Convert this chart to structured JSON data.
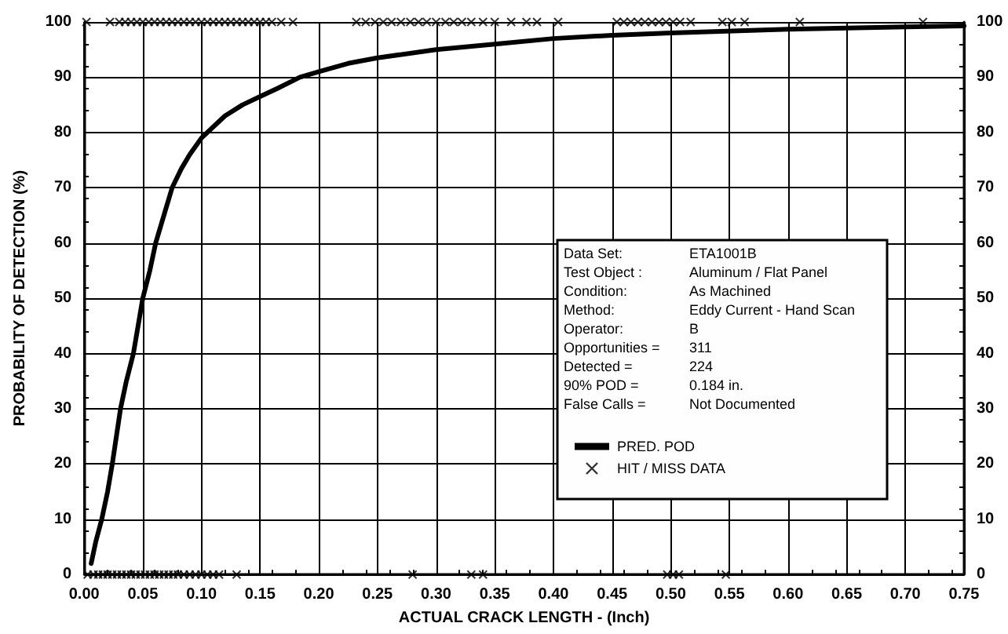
{
  "chart_data": {
    "type": "line",
    "xlabel": "ACTUAL CRACK LENGTH - (Inch)",
    "ylabel": "PROBABILITY OF DETECTION (%)",
    "xlim": [
      0,
      0.75
    ],
    "xticks": [
      {
        "value": 0,
        "label": "0.00"
      },
      {
        "value": 0.05,
        "label": "0.05"
      },
      {
        "value": 0.1,
        "label": "0.10"
      },
      {
        "value": 0.15,
        "label": "0.15"
      },
      {
        "value": 0.2,
        "label": "0.20"
      },
      {
        "value": 0.25,
        "label": "0.25"
      },
      {
        "value": 0.3,
        "label": "0.30"
      },
      {
        "value": 0.35,
        "label": "0.35"
      },
      {
        "value": 0.4,
        "label": "0.40"
      },
      {
        "value": 0.45,
        "label": "0.45"
      },
      {
        "value": 0.5,
        "label": "0.50"
      },
      {
        "value": 0.55,
        "label": "0.55"
      },
      {
        "value": 0.6,
        "label": "0.60"
      },
      {
        "value": 0.65,
        "label": "0.65"
      },
      {
        "value": 0.7,
        "label": "0.70"
      },
      {
        "value": 0.75,
        "label": "0.75"
      }
    ],
    "ylim": [
      0,
      100
    ],
    "yticks": [
      0,
      10,
      20,
      30,
      40,
      50,
      60,
      70,
      80,
      90,
      100
    ],
    "y2lim": [
      0,
      100
    ],
    "y2ticks": [
      0,
      10,
      20,
      30,
      40,
      50,
      60,
      70,
      80,
      90,
      100
    ],
    "grid": true,
    "legend": "bottom",
    "annotations": [
      "Data Set:",
      "ETA1001B",
      "Test Object :",
      "Aluminum / Flat Panel",
      "Condition:",
      "As Machined",
      "Method:",
      "Eddy Current - Hand Scan",
      "Operator:",
      "B",
      "Opportunities =",
      "311",
      "Detected =",
      "224",
      "90% POD =",
      "0.184 in.",
      "False Calls =",
      "Not Documented"
    ],
    "series": [
      {
        "name": "PRED. POD",
        "color": "#000000",
        "line_style": "solid",
        "marker": "none",
        "x": [
          0.006,
          0.01,
          0.015,
          0.02,
          0.024,
          0.031,
          0.036,
          0.042,
          0.05,
          0.056,
          0.061,
          0.068,
          0.075,
          0.083,
          0.09,
          0.1,
          0.11,
          0.12,
          0.135,
          0.15,
          0.165,
          0.184,
          0.2,
          0.225,
          0.25,
          0.3,
          0.35,
          0.4,
          0.45,
          0.5,
          0.6,
          0.7,
          0.75
        ],
        "values": [
          2,
          6,
          10,
          15,
          20,
          30,
          35,
          40,
          50,
          55,
          60,
          65,
          70,
          73.5,
          76,
          79,
          81,
          83,
          85,
          86.5,
          88,
          90,
          91,
          92.5,
          93.5,
          95,
          96,
          97,
          97.6,
          98,
          98.7,
          99.1,
          99.3
        ]
      },
      {
        "name": "HIT / MISS DATA",
        "type": "scatter",
        "color": "#000000",
        "marker": "cross",
        "x": [
          0.002,
          0.022,
          0.03,
          0.035,
          0.04,
          0.045,
          0.05,
          0.055,
          0.06,
          0.065,
          0.07,
          0.075,
          0.08,
          0.085,
          0.09,
          0.095,
          0.1,
          0.105,
          0.11,
          0.115,
          0.12,
          0.125,
          0.13,
          0.135,
          0.14,
          0.145,
          0.15,
          0.155,
          0.16,
          0.168,
          0.178,
          0.232,
          0.24,
          0.248,
          0.255,
          0.262,
          0.27,
          0.278,
          0.285,
          0.292,
          0.3,
          0.308,
          0.315,
          0.322,
          0.33,
          0.34,
          0.35,
          0.364,
          0.377,
          0.386,
          0.404,
          0.454,
          0.46,
          0.466,
          0.472,
          0.478,
          0.484,
          0.49,
          0.496,
          0.502,
          0.508,
          0.517,
          0.544,
          0.552,
          0.563,
          0.61,
          0.715,
          0.003,
          0.008,
          0.012,
          0.016,
          0.02,
          0.024,
          0.028,
          0.032,
          0.036,
          0.04,
          0.044,
          0.048,
          0.052,
          0.056,
          0.06,
          0.064,
          0.068,
          0.072,
          0.076,
          0.08,
          0.085,
          0.09,
          0.095,
          0.1,
          0.105,
          0.11,
          0.115,
          0.13,
          0.28,
          0.33,
          0.34,
          0.497,
          0.502,
          0.507,
          0.547
        ],
        "values": [
          100,
          100,
          100,
          100,
          100,
          100,
          100,
          100,
          100,
          100,
          100,
          100,
          100,
          100,
          100,
          100,
          100,
          100,
          100,
          100,
          100,
          100,
          100,
          100,
          100,
          100,
          100,
          100,
          100,
          100,
          100,
          100,
          100,
          100,
          100,
          100,
          100,
          100,
          100,
          100,
          100,
          100,
          100,
          100,
          100,
          100,
          100,
          100,
          100,
          100,
          100,
          100,
          100,
          100,
          100,
          100,
          100,
          100,
          100,
          100,
          100,
          100,
          100,
          100,
          100,
          100,
          100,
          0,
          0,
          0,
          0,
          0,
          0,
          0,
          0,
          0,
          0,
          0,
          0,
          0,
          0,
          0,
          0,
          0,
          0,
          0,
          0,
          0,
          0,
          0,
          0,
          0,
          0,
          0,
          0,
          0,
          0,
          0,
          0,
          0,
          0,
          0
        ]
      }
    ]
  }
}
